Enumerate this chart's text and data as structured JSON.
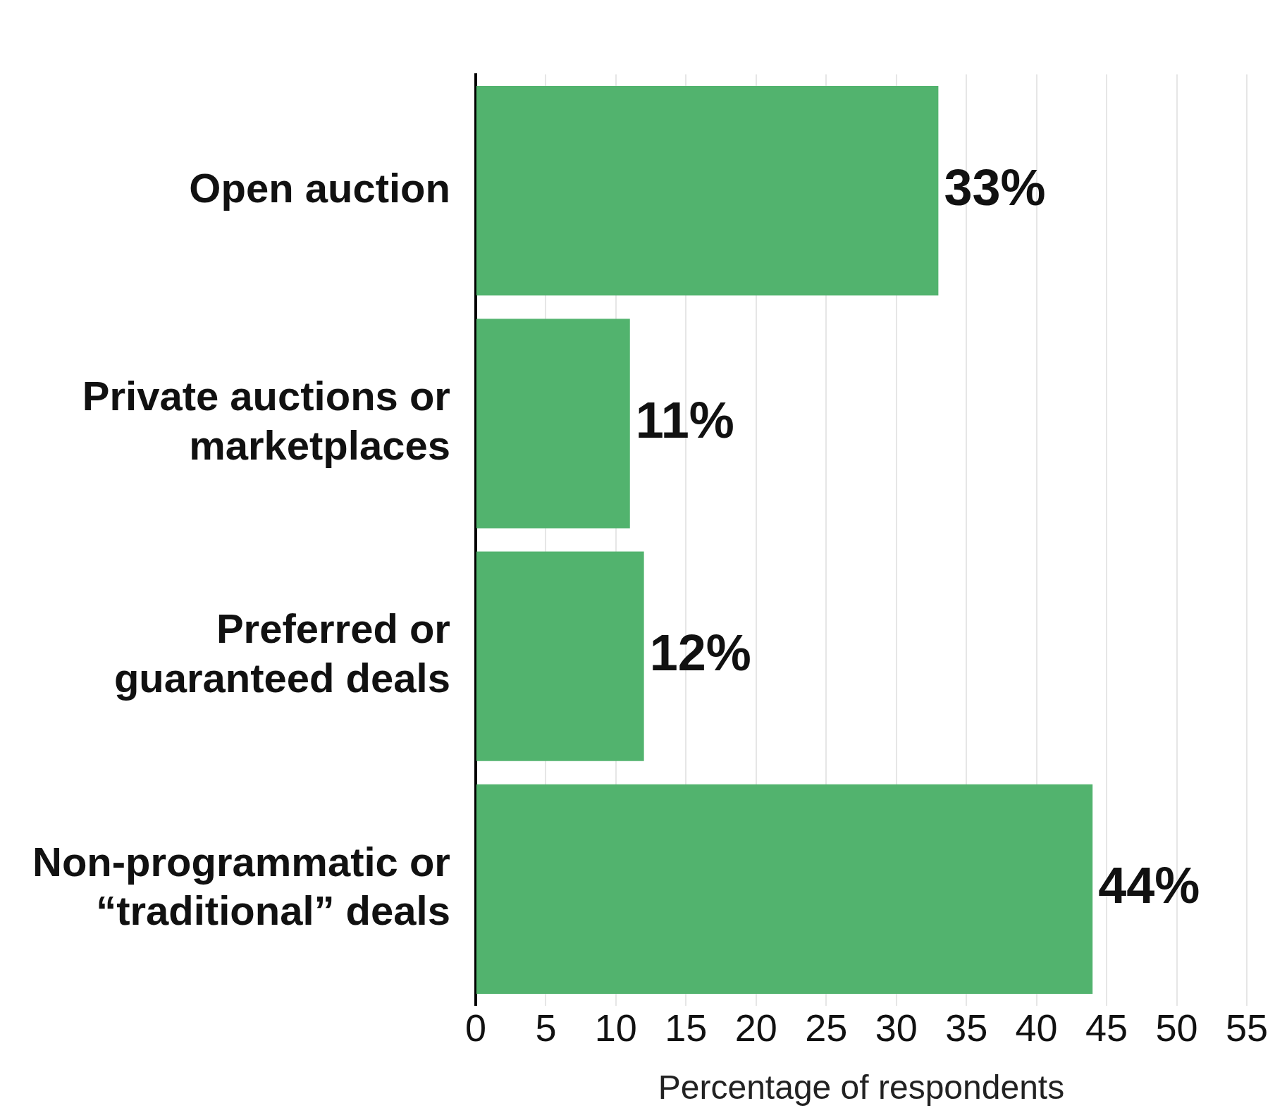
{
  "chart_data": {
    "type": "bar",
    "orientation": "horizontal",
    "categories": [
      "Open auction",
      "Private auctions or marketplaces",
      "Preferred or guaranteed deals",
      "Non-programmatic or “traditional” deals"
    ],
    "values": [
      33,
      11,
      12,
      44
    ],
    "value_labels": [
      "33%",
      "11%",
      "12%",
      "44%"
    ],
    "color": "#52b36e",
    "xlabel": "Percentage of respondents",
    "xlim": [
      0,
      55
    ],
    "xticks": [
      0,
      5,
      10,
      15,
      20,
      25,
      30,
      35,
      40,
      45,
      50,
      55
    ],
    "grid": "x",
    "legend": false
  }
}
